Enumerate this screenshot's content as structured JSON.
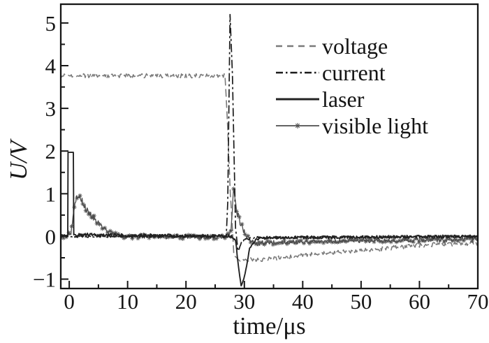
{
  "figure": {
    "background": "#ffffff",
    "frame_color": "#161616",
    "text_color": "#161616"
  },
  "chart_data": {
    "type": "line",
    "title": "",
    "xlabel": "time/μs",
    "ylabel": "U/V",
    "xlim": [
      -1.45,
      70
    ],
    "ylim": [
      -1.22,
      5.44
    ],
    "grid": false,
    "legend_position": "upper right",
    "x_major_ticks": [
      0,
      10,
      20,
      30,
      40,
      50,
      60,
      70
    ],
    "x_tick_labels": [
      "0",
      "10",
      "20",
      "30",
      "40",
      "50",
      "60",
      "70"
    ],
    "x_minor_ticks": [
      5,
      15,
      25,
      35,
      45,
      55,
      65
    ],
    "y_major_ticks": [
      -1,
      0,
      1,
      2,
      3,
      4,
      5
    ],
    "y_tick_labels": [
      "−1",
      "0",
      "1",
      "2",
      "3",
      "4",
      "5"
    ],
    "y_minor_ticks": [
      -0.5,
      0.5,
      1.5,
      2.5,
      3.5,
      4.5
    ],
    "series": [
      {
        "name": "voltage",
        "color": "#7a7a7a",
        "line_style": "dashed",
        "marker": null,
        "points": [
          [
            -1.45,
            3.77,
            0.05
          ],
          [
            26.7,
            3.76,
            0.05
          ],
          [
            27.0,
            3.0,
            0.03
          ],
          [
            27.6,
            1.0,
            0.03
          ],
          [
            28.2,
            -0.4,
            0.04
          ],
          [
            29.0,
            -0.55,
            0.05
          ],
          [
            32.0,
            -0.55,
            0.05
          ],
          [
            36,
            -0.5,
            0.05
          ],
          [
            40,
            -0.44,
            0.05
          ],
          [
            45,
            -0.38,
            0.05
          ],
          [
            50,
            -0.33,
            0.05
          ],
          [
            55,
            -0.27,
            0.05
          ],
          [
            60,
            -0.21,
            0.05
          ],
          [
            65,
            -0.18,
            0.05
          ],
          [
            70,
            -0.16,
            0.05
          ]
        ]
      },
      {
        "name": "current",
        "color": "#1b1b1b",
        "line_style": "dashdot",
        "marker": null,
        "points": [
          [
            -1.45,
            0,
            0.025
          ],
          [
            26.9,
            0,
            0.025
          ],
          [
            27.15,
            0.8,
            0.02
          ],
          [
            27.55,
            5.2,
            0
          ],
          [
            27.95,
            3.8,
            0
          ],
          [
            28.5,
            0.2,
            0.02
          ],
          [
            28.9,
            -0.35,
            0.02
          ],
          [
            29.6,
            -0.12,
            0.03
          ],
          [
            31,
            -0.03,
            0.03
          ],
          [
            70,
            0,
            0.03
          ]
        ]
      },
      {
        "name": "laser",
        "color": "#222222",
        "line_style": "solid",
        "marker": null,
        "points": [
          [
            -1.45,
            0.02,
            0.04
          ],
          [
            -0.25,
            0.02,
            0.01
          ],
          [
            -0.2,
            1.97,
            0
          ],
          [
            0.7,
            1.97,
            0
          ],
          [
            0.78,
            0.05,
            0.01
          ],
          [
            1.2,
            0.04,
            0.04
          ],
          [
            27.8,
            0.0,
            0.04
          ],
          [
            28.5,
            -0.08,
            0.03
          ],
          [
            28.9,
            -0.6,
            0.02
          ],
          [
            29.45,
            -1.16,
            0.01
          ],
          [
            30.0,
            -0.95,
            0.02
          ],
          [
            30.9,
            -0.3,
            0.03
          ],
          [
            31.8,
            -0.1,
            0.035
          ],
          [
            33,
            -0.03,
            0.035
          ],
          [
            70,
            0.0,
            0.035
          ]
        ]
      },
      {
        "name": "visible light",
        "color": "#4d4d4d",
        "line_style": "solid",
        "marker": "star",
        "points": [
          [
            -1.45,
            -0.02,
            0.04
          ],
          [
            0.3,
            0.05,
            0.06
          ],
          [
            1.0,
            0.8,
            0.09
          ],
          [
            1.6,
            1.0,
            0.09
          ],
          [
            2.2,
            0.8,
            0.1
          ],
          [
            3.2,
            0.6,
            0.09
          ],
          [
            4.5,
            0.38,
            0.08
          ],
          [
            6.0,
            0.18,
            0.06
          ],
          [
            7.5,
            0.05,
            0.05
          ],
          [
            9,
            0.0,
            0.05
          ],
          [
            26.8,
            -0.02,
            0.05
          ],
          [
            27.7,
            0.15,
            0.06
          ],
          [
            28.15,
            1.05,
            0.09
          ],
          [
            28.8,
            0.55,
            0.1
          ],
          [
            29.6,
            0.22,
            0.08
          ],
          [
            30.5,
            -0.02,
            0.07
          ],
          [
            32,
            -0.16,
            0.06
          ],
          [
            36,
            -0.14,
            0.05
          ],
          [
            45,
            -0.12,
            0.05
          ],
          [
            55,
            -0.1,
            0.05
          ],
          [
            70,
            -0.07,
            0.05
          ]
        ]
      }
    ]
  }
}
